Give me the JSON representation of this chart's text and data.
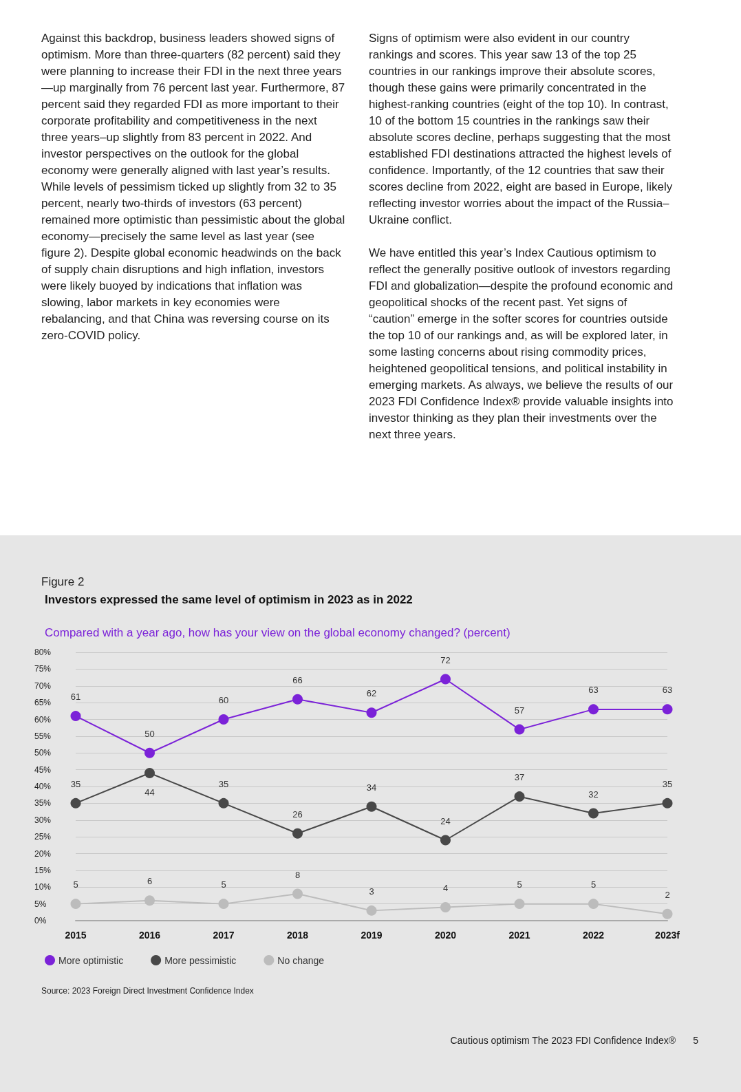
{
  "chart_data": {
    "type": "line",
    "title": "Investors expressed the same level of optimism in 2023 as in 2022",
    "subtitle": "Compared with a year ago, how has your view on the global economy changed? (percent)",
    "categories": [
      "2015",
      "2016",
      "2017",
      "2018",
      "2019",
      "2020",
      "2021",
      "2022",
      "2023f"
    ],
    "series": [
      {
        "name": "More optimistic",
        "color": "#7b22d8",
        "values": [
          61,
          50,
          60,
          66,
          62,
          72,
          57,
          63,
          63
        ]
      },
      {
        "name": "More pessimistic",
        "color": "#484848",
        "values": [
          35,
          44,
          35,
          26,
          34,
          24,
          37,
          32,
          35
        ]
      },
      {
        "name": "No change",
        "color": "#bcbcbc",
        "values": [
          5,
          6,
          5,
          8,
          3,
          4,
          5,
          5,
          2
        ]
      }
    ],
    "ylim": [
      0,
      80
    ],
    "yticks": [
      {
        "value": 0,
        "label": "0%"
      },
      {
        "value": 5,
        "label": "5%"
      },
      {
        "value": 10,
        "label": "10%"
      },
      {
        "value": 15,
        "label": "15%"
      },
      {
        "value": 20,
        "label": "20%"
      },
      {
        "value": 25,
        "label": "25%"
      },
      {
        "value": 30,
        "label": "30%"
      },
      {
        "value": 35,
        "label": "35%"
      },
      {
        "value": 40,
        "label": "40%"
      },
      {
        "value": 45,
        "label": "45%"
      },
      {
        "value": 50,
        "label": "50%"
      },
      {
        "value": 55,
        "label": "55%"
      },
      {
        "value": 60,
        "label": "60%"
      },
      {
        "value": 65,
        "label": "65%"
      },
      {
        "value": 70,
        "label": "70%"
      },
      {
        "value": 75,
        "label": "75%"
      },
      {
        "value": 80,
        "label": "80%"
      }
    ],
    "grid": "y",
    "legend": "bottom left",
    "marker": "circle",
    "line_style": "solid",
    "data_labels": true,
    "annotations": [
      "Against this backdrop, business leaders showed signs of optimism. More than three-quarters (82 percent) said they were planning to increase their FDI in the next three years—up marginally from 76 percent last year. Furthermore, 87 percent said they regarded FDI as more important to their corporate profitability and competitiveness in the next three years–up slightly from 83 percent in 2022. And investor perspectives on the outlook for the global economy were generally aligned with last year’s results. While levels of pessimism ticked up slightly from 32 to 35 percent, nearly two-thirds of investors (63 percent) remained more optimistic than pessimistic about the global economy—precisely the same level as last year (see figure 2). Despite global economic headwinds on the back of supply chain disruptions and high inflation, investors were likely buoyed by indications that inflation was slowing, labor markets in key economies were rebalancing, and that China was reversing course on its zero-COVID policy.",
      "Signs of optimism were also evident in our country rankings and scores. This year saw 13 of the top 25 countries in our rankings improve their absolute scores, though these gains were primarily concentrated in the highest-ranking countries (eight of the top 10). In contrast, 10 of the bottom 15 countries in the rankings saw their absolute scores decline, perhaps suggesting that the most established FDI destinations attracted the highest levels of confidence. Importantly, of the 12 countries that saw their scores decline from 2022, eight are based in Europe, likely reflecting investor worries about the impact of the Russia–Ukraine conflict.",
      "We have entitled this year’s Index Cautious optimism to reflect the generally positive outlook of investors regarding FDI and globalization—despite the profound economic and geopolitical shocks of the recent past. Yet signs of “caution” emerge in the softer scores for countries outside the top 10 of our rankings and, as will be explored later, in some lasting concerns about rising commodity prices, heightened geopolitical tensions, and political instability in emerging markets. As always, we believe the results of our 2023 FDI Confidence Index® provide valuable insights into investor thinking as they plan their investments over the next three years.",
      "Figure 2",
      "Source: 2023 Foreign Direct Investment Confidence Index",
      "Cautious optimism The 2023 FDI Confidence Index®",
      "5"
    ]
  }
}
